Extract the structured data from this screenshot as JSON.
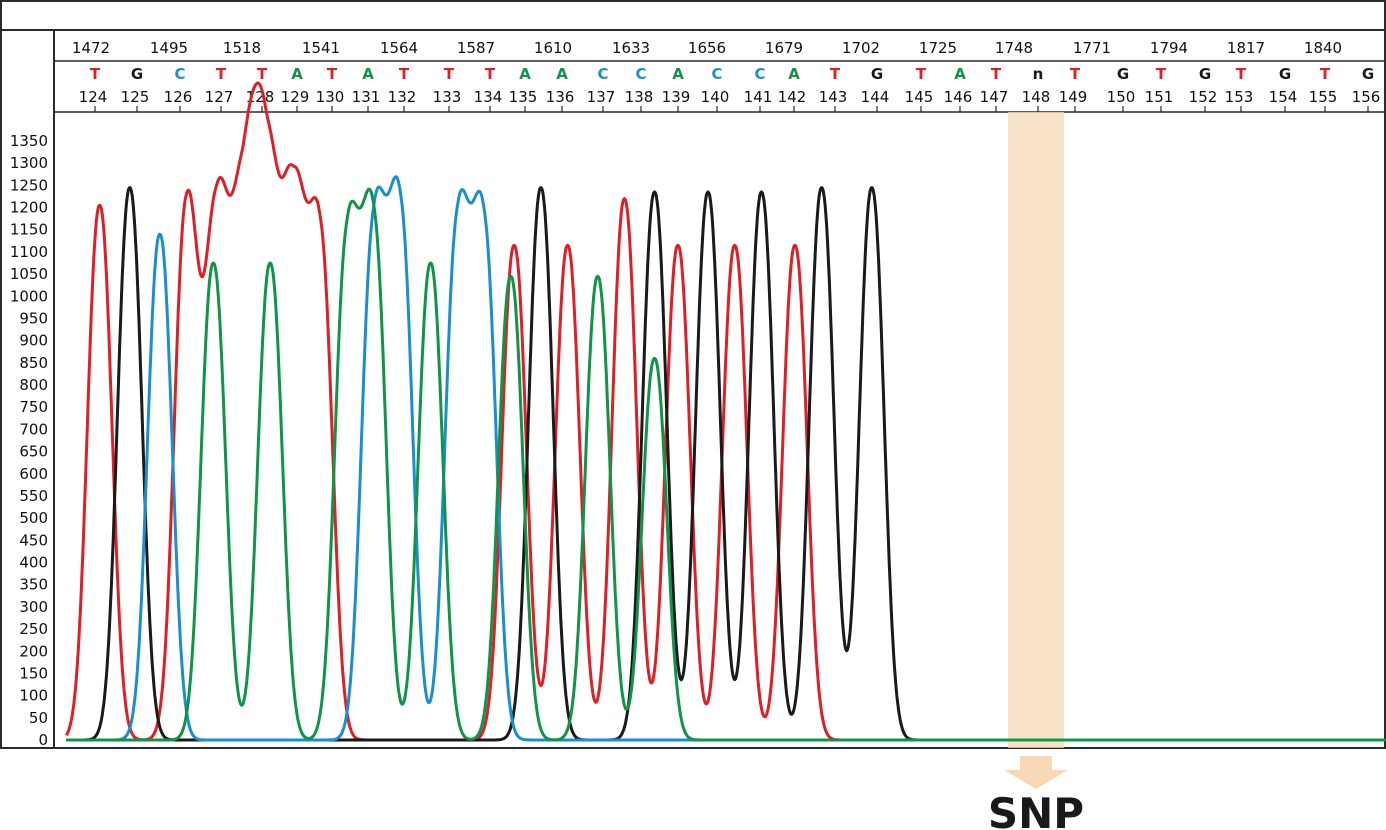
{
  "colors": {
    "A": "#0f9448",
    "C": "#1a8fd0",
    "G": "#1a1a1a",
    "T": "#dd1f26",
    "n": "#1a1a1a",
    "highlight": "#f7d9b5"
  },
  "chart_data": {
    "type": "line",
    "title": "",
    "xlabel": "",
    "ylabel": "",
    "ylim": [
      0,
      1400
    ],
    "yticks": [
      0,
      50,
      100,
      150,
      200,
      250,
      300,
      350,
      400,
      450,
      500,
      550,
      600,
      650,
      700,
      750,
      800,
      850,
      900,
      950,
      1000,
      1050,
      1100,
      1150,
      1200,
      1250,
      1300,
      1350
    ],
    "scan_ticks": [
      "1472",
      "1495",
      "1518",
      "1541",
      "1564",
      "1587",
      "1610",
      "1633",
      "1656",
      "1679",
      "1702",
      "1725",
      "1748",
      "1771",
      "1794",
      "1817",
      "1840"
    ],
    "bases": [
      {
        "pos": "124",
        "base": "T"
      },
      {
        "pos": "125",
        "base": "G"
      },
      {
        "pos": "126",
        "base": "C"
      },
      {
        "pos": "127",
        "base": "T"
      },
      {
        "pos": "128",
        "base": "T"
      },
      {
        "pos": "129",
        "base": "A"
      },
      {
        "pos": "130",
        "base": "T"
      },
      {
        "pos": "131",
        "base": "A"
      },
      {
        "pos": "132",
        "base": "T"
      },
      {
        "pos": "133",
        "base": "T"
      },
      {
        "pos": "134",
        "base": "T"
      },
      {
        "pos": "135",
        "base": "A"
      },
      {
        "pos": "136",
        "base": "A"
      },
      {
        "pos": "137",
        "base": "C"
      },
      {
        "pos": "138",
        "base": "C"
      },
      {
        "pos": "139",
        "base": "A"
      },
      {
        "pos": "140",
        "base": "C"
      },
      {
        "pos": "141",
        "base": "C"
      },
      {
        "pos": "142",
        "base": "A"
      },
      {
        "pos": "143",
        "base": "T"
      },
      {
        "pos": "144",
        "base": "G"
      },
      {
        "pos": "145",
        "base": "T"
      },
      {
        "pos": "146",
        "base": "A"
      },
      {
        "pos": "147",
        "base": "T"
      },
      {
        "pos": "148",
        "base": "n"
      },
      {
        "pos": "149",
        "base": "T"
      },
      {
        "pos": "150",
        "base": "G"
      },
      {
        "pos": "151",
        "base": "T"
      },
      {
        "pos": "152",
        "base": "G"
      },
      {
        "pos": "153",
        "base": "T"
      },
      {
        "pos": "154",
        "base": "G"
      },
      {
        "pos": "155",
        "base": "T"
      },
      {
        "pos": "156",
        "base": "G"
      }
    ],
    "series": [
      {
        "name": "T",
        "peaks": [
          [
            1474,
            1205
          ],
          [
            1500,
            1205
          ],
          [
            1509,
            1160
          ],
          [
            1517,
            1140
          ],
          [
            1524,
            1215
          ],
          [
            1532,
            1165
          ],
          [
            1540,
            1115
          ],
          [
            1598,
            1115
          ],
          [
            1614,
            1115
          ],
          [
            1631,
            1220
          ],
          [
            1647,
            1115
          ],
          [
            1664,
            1115
          ],
          [
            1682,
            1115
          ]
        ]
      },
      {
        "name": "G",
        "peaks": [
          [
            1483,
            1245
          ],
          [
            1606,
            1245
          ],
          [
            1640,
            1235
          ],
          [
            1656,
            1235
          ],
          [
            1672,
            1235
          ],
          [
            1690,
            1245
          ],
          [
            1705,
            1245
          ]
        ]
      },
      {
        "name": "C",
        "peaks": [
          [
            1492,
            1140
          ],
          [
            1556,
            1140
          ],
          [
            1564,
            1170
          ],
          [
            1581,
            1140
          ],
          [
            1589,
            1135
          ]
        ]
      },
      {
        "name": "A",
        "peaks": [
          [
            1508,
            1075
          ],
          [
            1525,
            1075
          ],
          [
            1548,
            1110
          ],
          [
            1556,
            1145
          ],
          [
            1573,
            1075
          ],
          [
            1597,
            1045
          ],
          [
            1623,
            1045
          ],
          [
            1640,
            860
          ]
        ]
      }
    ],
    "annotation": {
      "label": "SNP",
      "at_position": "148"
    }
  }
}
